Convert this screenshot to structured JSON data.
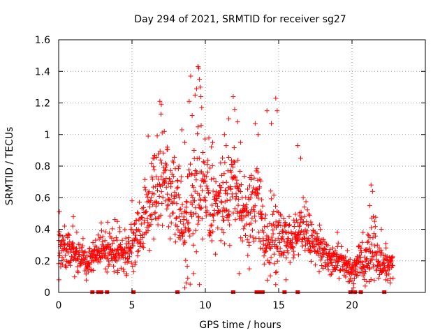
{
  "chart_data": {
    "type": "scatter",
    "title": "Day 294 of 2021, SRMTID for receiver sg27",
    "xlabel": "GPS time / hours",
    "ylabel": "SRMTID / TECUs",
    "xlim": [
      0,
      25
    ],
    "ylim": [
      0,
      1.6
    ],
    "x_ticks": [
      0,
      5,
      10,
      15,
      20
    ],
    "x_tick_labels": [
      "0",
      "5",
      "10",
      "15",
      "20"
    ],
    "y_ticks": [
      0,
      0.2,
      0.4,
      0.6,
      0.8,
      1.0,
      1.2,
      1.4,
      1.6
    ],
    "y_tick_labels": [
      "0",
      "0.2",
      "0.4",
      "0.6",
      "0.8",
      "1",
      "1.2",
      "1.4",
      "1.6"
    ],
    "grid": true,
    "marker": "+",
    "color": "#ff0000",
    "axis_zero_markers_x": [
      2.3,
      2.7,
      2.9,
      3.3,
      5.1,
      8.1,
      11.9,
      13.5,
      13.7,
      13.9,
      15.4,
      16.3,
      19.9,
      20.2,
      20.6,
      22.2
    ],
    "envelope_hours": [
      0,
      0.5,
      1,
      1.5,
      2,
      2.5,
      3,
      3.5,
      4,
      4.5,
      5,
      5.5,
      6,
      6.5,
      7,
      7.5,
      8,
      8.5,
      9,
      9.5,
      10,
      10.5,
      11,
      11.5,
      12,
      12.5,
      13,
      13.5,
      14,
      14.5,
      15,
      15.5,
      16,
      16.5,
      17,
      17.5,
      18,
      18.5,
      19,
      19.5,
      20,
      20.5,
      21,
      21.5,
      22,
      22.5,
      22.8
    ],
    "envelope_typical": [
      0.28,
      0.25,
      0.27,
      0.22,
      0.2,
      0.24,
      0.26,
      0.28,
      0.27,
      0.25,
      0.3,
      0.38,
      0.48,
      0.6,
      0.7,
      0.65,
      0.55,
      0.42,
      0.55,
      0.75,
      0.72,
      0.58,
      0.55,
      0.6,
      0.68,
      0.55,
      0.5,
      0.62,
      0.3,
      0.38,
      0.35,
      0.32,
      0.35,
      0.42,
      0.38,
      0.3,
      0.25,
      0.22,
      0.2,
      0.18,
      0.15,
      0.22,
      0.2,
      0.28,
      0.2,
      0.17,
      0.16
    ],
    "envelope_spread": [
      0.12,
      0.1,
      0.12,
      0.1,
      0.08,
      0.09,
      0.1,
      0.12,
      0.12,
      0.1,
      0.12,
      0.15,
      0.2,
      0.25,
      0.28,
      0.25,
      0.22,
      0.25,
      0.3,
      0.35,
      0.28,
      0.22,
      0.22,
      0.25,
      0.25,
      0.2,
      0.22,
      0.25,
      0.15,
      0.25,
      0.15,
      0.12,
      0.12,
      0.15,
      0.15,
      0.12,
      0.1,
      0.08,
      0.08,
      0.08,
      0.07,
      0.1,
      0.12,
      0.18,
      0.1,
      0.08,
      0.07
    ],
    "peak_points": [
      [
        0.05,
        0.51
      ],
      [
        0.4,
        0.42
      ],
      [
        1.0,
        0.48
      ],
      [
        2.9,
        0.44
      ],
      [
        4.0,
        0.45
      ],
      [
        5.0,
        0.58
      ],
      [
        6.1,
        0.99
      ],
      [
        6.5,
        0.85
      ],
      [
        6.9,
        1.21
      ],
      [
        7.0,
        1.19
      ],
      [
        7.2,
        1.02
      ],
      [
        7.4,
        0.92
      ],
      [
        8.2,
        0.8
      ],
      [
        8.4,
        1.03
      ],
      [
        8.6,
        0.95
      ],
      [
        8.9,
        1.21
      ],
      [
        9.0,
        1.37
      ],
      [
        9.1,
        1.12
      ],
      [
        9.3,
        1.25
      ],
      [
        9.4,
        1.29
      ],
      [
        9.5,
        1.43
      ],
      [
        9.55,
        1.42
      ],
      [
        9.6,
        1.35
      ],
      [
        9.65,
        1.3
      ],
      [
        9.7,
        1.24
      ],
      [
        9.75,
        1.17
      ],
      [
        10.5,
        0.95
      ],
      [
        11.3,
        1.0
      ],
      [
        11.6,
        1.1
      ],
      [
        11.9,
        1.24
      ],
      [
        12.0,
        1.16
      ],
      [
        12.2,
        1.08
      ],
      [
        12.4,
        0.95
      ],
      [
        13.4,
        1.07
      ],
      [
        13.6,
        1.0
      ],
      [
        14.2,
        1.15
      ],
      [
        14.5,
        1.07
      ],
      [
        14.8,
        1.23
      ],
      [
        14.9,
        1.15
      ],
      [
        16.3,
        0.93
      ],
      [
        16.5,
        0.85
      ],
      [
        19.0,
        0.38
      ],
      [
        21.3,
        0.68
      ],
      [
        21.4,
        0.64
      ],
      [
        21.2,
        0.55
      ],
      [
        22.0,
        0.4
      ]
    ],
    "low_points": [
      [
        0.02,
        0.08
      ],
      [
        8.6,
        0.03
      ],
      [
        8.7,
        0.06
      ],
      [
        8.8,
        0.09
      ],
      [
        9.2,
        0.12
      ],
      [
        9.6,
        0.05
      ],
      [
        12.3,
        0.12
      ],
      [
        13.0,
        0.15
      ],
      [
        14.8,
        0.05
      ],
      [
        15.5,
        0.08
      ],
      [
        20.1,
        0.03
      ],
      [
        20.9,
        0.04
      ],
      [
        21.0,
        0.07
      ],
      [
        22.3,
        0.08
      ],
      [
        22.6,
        0.06
      ]
    ]
  }
}
